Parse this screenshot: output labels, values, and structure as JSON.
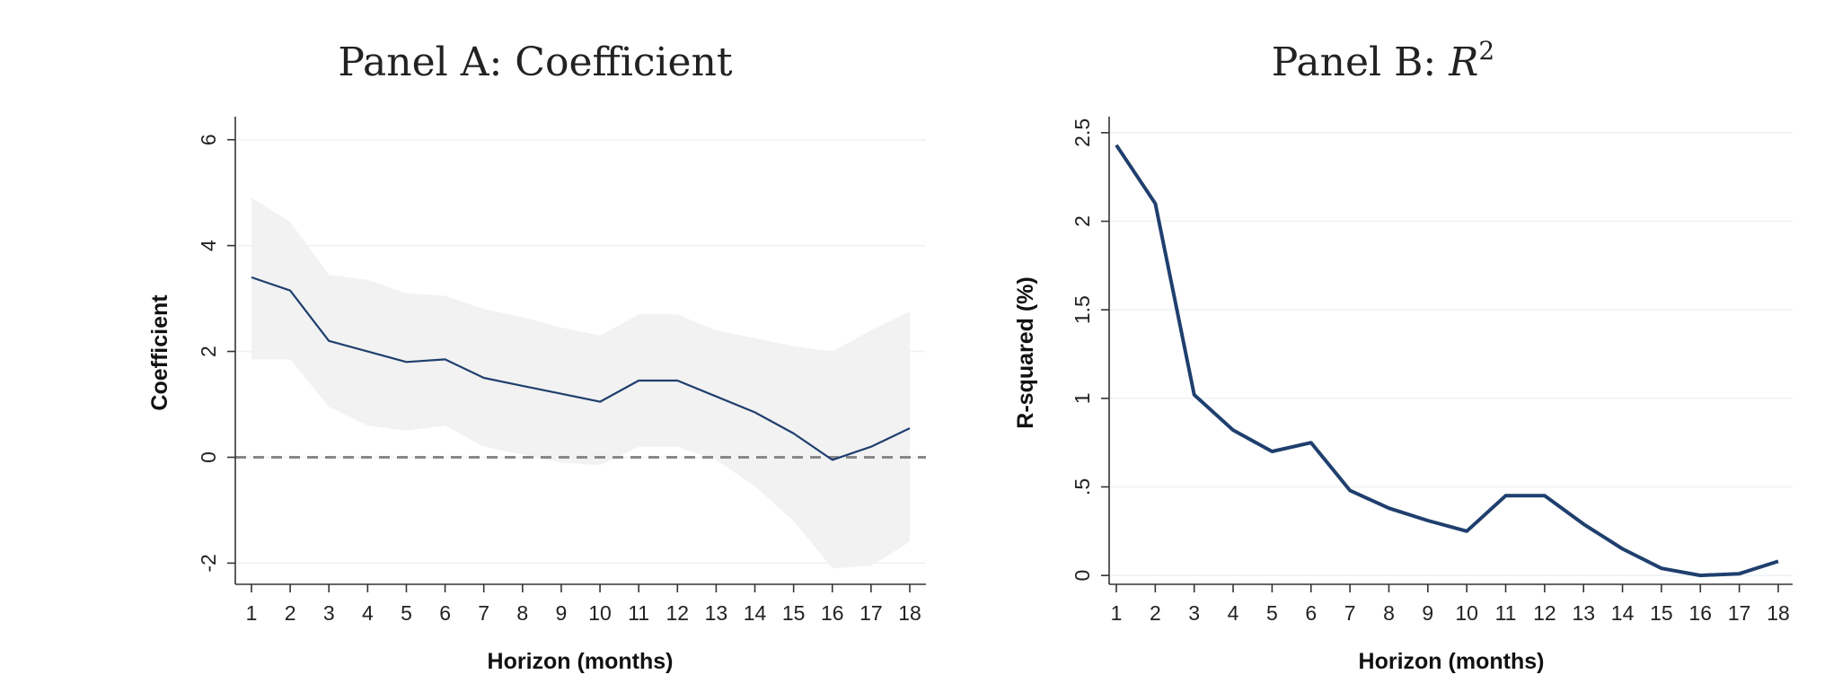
{
  "chart_data": [
    {
      "type": "line",
      "title": "Panel A: Coefficient",
      "xlabel": "Horizon (months)",
      "ylabel": "Coefficient",
      "xlim": [
        1,
        18
      ],
      "ylim": [
        -2.4,
        6.3
      ],
      "xticks": [
        "1",
        "2",
        "3",
        "4",
        "5",
        "6",
        "7",
        "8",
        "9",
        "10",
        "11",
        "12",
        "13",
        "14",
        "15",
        "16",
        "17",
        "18"
      ],
      "yticks": [
        {
          "v": -2,
          "label": "-2"
        },
        {
          "v": 0,
          "label": "0"
        },
        {
          "v": 2,
          "label": "2"
        },
        {
          "v": 4,
          "label": "4"
        },
        {
          "v": 6,
          "label": "6"
        }
      ],
      "x": [
        1,
        2,
        3,
        4,
        5,
        6,
        7,
        8,
        9,
        10,
        11,
        12,
        13,
        14,
        15,
        16,
        17,
        18
      ],
      "series": [
        {
          "values": [
            3.4,
            3.15,
            2.2,
            2.0,
            1.8,
            1.85,
            1.5,
            1.35,
            1.2,
            1.05,
            1.45,
            1.45,
            1.15,
            0.85,
            0.45,
            -0.05,
            0.2,
            0.55
          ],
          "color": "#1f3f6e"
        }
      ],
      "band_upper": [
        4.9,
        4.45,
        3.45,
        3.35,
        3.1,
        3.05,
        2.8,
        2.65,
        2.45,
        2.3,
        2.7,
        2.7,
        2.4,
        2.25,
        2.1,
        2.0,
        2.4,
        2.75
      ],
      "band_lower": [
        1.85,
        1.85,
        0.95,
        0.6,
        0.5,
        0.6,
        0.2,
        0.05,
        -0.1,
        -0.15,
        0.2,
        0.2,
        -0.05,
        -0.55,
        -1.2,
        -2.1,
        -2.05,
        -1.6
      ],
      "band_color": "#f2f2f2",
      "reference_line": {
        "y": 0,
        "style": "dashed",
        "color": "#888888"
      },
      "grid": true
    },
    {
      "type": "line",
      "title": "Panel B: ",
      "title_math": "R",
      "title_sup": "2",
      "xlabel": "Horizon (months)",
      "ylabel": "R-squared (%)",
      "xlim": [
        1,
        18
      ],
      "ylim": [
        -0.05,
        2.55
      ],
      "xticks": [
        "1",
        "2",
        "3",
        "4",
        "5",
        "6",
        "7",
        "8",
        "9",
        "10",
        "11",
        "12",
        "13",
        "14",
        "15",
        "16",
        "17",
        "18"
      ],
      "yticks": [
        {
          "v": 0,
          "label": "0"
        },
        {
          "v": 0.5,
          "label": ".5"
        },
        {
          "v": 1,
          "label": "1"
        },
        {
          "v": 1.5,
          "label": "1.5"
        },
        {
          "v": 2,
          "label": "2"
        },
        {
          "v": 2.5,
          "label": "2.5"
        }
      ],
      "x": [
        1,
        2,
        3,
        4,
        5,
        6,
        7,
        8,
        9,
        10,
        11,
        12,
        13,
        14,
        15,
        16,
        17,
        18
      ],
      "series": [
        {
          "values": [
            2.43,
            2.1,
            1.02,
            0.82,
            0.7,
            0.75,
            0.48,
            0.38,
            0.31,
            0.25,
            0.45,
            0.45,
            0.29,
            0.15,
            0.04,
            0.0,
            0.01,
            0.08
          ],
          "color": "#1f3f6e"
        }
      ],
      "grid": true
    }
  ]
}
